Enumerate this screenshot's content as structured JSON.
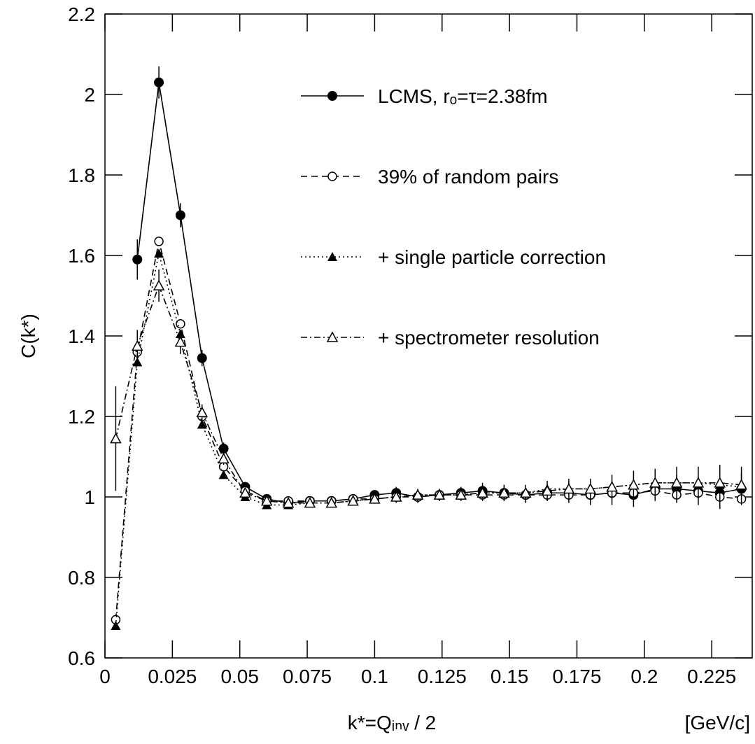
{
  "chart_data": {
    "type": "scatter",
    "x_label": "k*=Qᵢₙᵥ / 2",
    "x_unit": "[GeV/c]",
    "y_label": "C(k*)",
    "xlim": [
      0,
      0.24
    ],
    "ylim": [
      0.6,
      2.2
    ],
    "xticks": [
      0,
      0.025,
      0.05,
      0.075,
      0.1,
      0.125,
      0.15,
      0.175,
      0.2,
      0.225
    ],
    "yticks": [
      0.6,
      0.8,
      1,
      1.2,
      1.4,
      1.6,
      1.8,
      2,
      2.2
    ],
    "x": [
      0.004,
      0.012,
      0.02,
      0.028,
      0.036,
      0.044,
      0.052,
      0.06,
      0.068,
      0.076,
      0.084,
      0.092,
      0.1,
      0.108,
      0.116,
      0.124,
      0.132,
      0.14,
      0.148,
      0.156,
      0.164,
      0.172,
      0.18,
      0.188,
      0.196,
      0.204,
      0.212,
      0.22,
      0.228,
      0.236
    ],
    "series": [
      {
        "name": "LCMS, rₒ=τ=2.38fm",
        "color": "#000000",
        "marker": "filled-circle",
        "line": "solid",
        "values": [
          null,
          1.59,
          2.03,
          1.7,
          1.345,
          1.12,
          1.025,
          0.995,
          0.985,
          0.99,
          0.99,
          0.995,
          1.005,
          1.01,
          1.0,
          1.005,
          1.01,
          1.015,
          1.01,
          1.005,
          1.01,
          1.01,
          1.005,
          1.01,
          1.005,
          1.02,
          1.02,
          1.015,
          1.01,
          1.02
        ],
        "errors": [
          null,
          0.05,
          0.04,
          0.03,
          0.02,
          0.015,
          0.01,
          0.01,
          0.01,
          0.01,
          0.01,
          0.01,
          0.01,
          0.015,
          0.015,
          0.015,
          0.015,
          0.02,
          0.02,
          0.02,
          0.02,
          0.025,
          0.025,
          0.03,
          0.03,
          0.03,
          0.035,
          0.035,
          0.04,
          0.04
        ]
      },
      {
        "name": "39% of random pairs",
        "color": "#000000",
        "marker": "open-circle",
        "line": "dashed",
        "values": [
          0.695,
          1.36,
          1.635,
          1.43,
          1.2,
          1.075,
          1.015,
          0.99,
          0.99,
          0.99,
          0.99,
          0.995,
          0.995,
          1.0,
          1.0,
          1.005,
          1.005,
          1.005,
          1.005,
          1.005,
          1.005,
          1.005,
          1.005,
          1.01,
          1.01,
          1.015,
          1.005,
          1.01,
          1.0,
          0.995
        ]
      },
      {
        "name": "+ single particle correction",
        "color": "#000000",
        "marker": "filled-triangle",
        "line": "dotted",
        "values": [
          0.68,
          1.335,
          1.605,
          1.405,
          1.18,
          1.055,
          1.0,
          0.98,
          0.98,
          0.985,
          0.985,
          0.99,
          0.995,
          1.0,
          1.005,
          1.005,
          1.005,
          1.01,
          1.01,
          1.01,
          1.02,
          1.02,
          1.02,
          1.025,
          1.03,
          1.035,
          1.035,
          1.035,
          1.03,
          1.025
        ]
      },
      {
        "name": "+ spectrometer resolution",
        "color": "#000000",
        "marker": "open-triangle",
        "line": "dashdot",
        "values": [
          1.145,
          1.375,
          1.525,
          1.385,
          1.21,
          1.095,
          1.01,
          0.99,
          0.985,
          0.985,
          0.985,
          0.99,
          0.995,
          1.0,
          1.005,
          1.005,
          1.005,
          1.01,
          1.01,
          1.01,
          1.015,
          1.02,
          1.02,
          1.025,
          1.03,
          1.035,
          1.035,
          1.035,
          1.035,
          1.03
        ],
        "errors": [
          0.13,
          0.04,
          0.04,
          0.03,
          0.02,
          0.015,
          0.01,
          0.01,
          0.01,
          0.01,
          0.01,
          0.01,
          0.01,
          0.015,
          0.015,
          0.015,
          0.015,
          0.02,
          0.02,
          0.02,
          0.025,
          0.025,
          0.025,
          0.03,
          0.035,
          0.035,
          0.04,
          0.04,
          0.045,
          0.045
        ]
      }
    ]
  }
}
